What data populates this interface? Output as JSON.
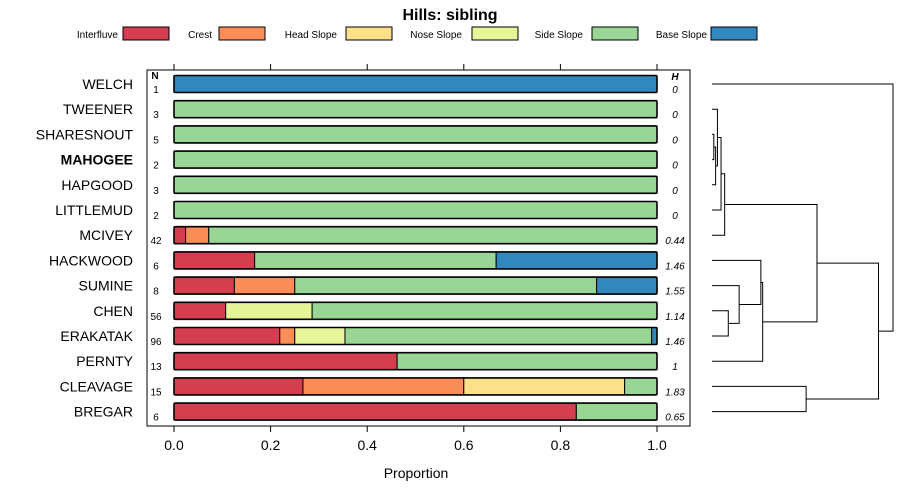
{
  "chart_data": {
    "type": "bar",
    "title": "Hills: sibling",
    "xlabel": "Proportion",
    "ylabel": "",
    "xlim": [
      0,
      1
    ],
    "x_ticks": [
      "0.0",
      "0.2",
      "0.4",
      "0.6",
      "0.8",
      "1.0"
    ],
    "n_header": "N",
    "h_header": "H",
    "categories": [
      "WELCH",
      "TWEENER",
      "SHARESNOUT",
      "MAHOGEE",
      "HAPGOOD",
      "LITTLEMUD",
      "MCIVEY",
      "HACKWOOD",
      "SUMINE",
      "CHEN",
      "ERAKATAK",
      "PERNTY",
      "CLEAVAGE",
      "BREGAR"
    ],
    "highlight": "MAHOGEE",
    "n": [
      "1",
      "3",
      "5",
      "2",
      "3",
      "2",
      "42",
      "6",
      "8",
      "56",
      "96",
      "13",
      "15",
      "6"
    ],
    "h": [
      "0",
      "0",
      "0",
      "0",
      "0",
      "0",
      "0.44",
      "1.46",
      "1.55",
      "1.14",
      "1.46",
      "1",
      "1.83",
      "0.65"
    ],
    "series": [
      {
        "name": "Interfluve",
        "color": "#D53E4F",
        "values": [
          0,
          0,
          0,
          0,
          0,
          0,
          0.024,
          0.167,
          0.125,
          0.107,
          0.219,
          0.462,
          0.267,
          0.833
        ]
      },
      {
        "name": "Crest",
        "color": "#FC8D59",
        "values": [
          0,
          0,
          0,
          0,
          0,
          0,
          0.048,
          0,
          0.125,
          0,
          0.031,
          0,
          0.333,
          0
        ]
      },
      {
        "name": "Head Slope",
        "color": "#FEE08B",
        "values": [
          0,
          0,
          0,
          0,
          0,
          0,
          0,
          0,
          0,
          0,
          0,
          0,
          0.333,
          0
        ]
      },
      {
        "name": "Nose Slope",
        "color": "#E6F598",
        "values": [
          0,
          0,
          0,
          0,
          0,
          0,
          0,
          0,
          0,
          0.179,
          0.104,
          0,
          0,
          0
        ]
      },
      {
        "name": "Side Slope",
        "color": "#99D594",
        "values": [
          0,
          1,
          1,
          1,
          1,
          1,
          0.928,
          0.5,
          0.625,
          0.714,
          0.635,
          0.538,
          0.067,
          0.167
        ]
      },
      {
        "name": "Base Slope",
        "color": "#3288BD",
        "values": [
          1,
          0,
          0,
          0,
          0,
          0,
          0,
          0.333,
          0.125,
          0,
          0.011,
          0,
          0,
          0
        ]
      }
    ],
    "dendrogram": {
      "merges": [
        {
          "a": "SHARESNOUT",
          "b": "MAHOGEE",
          "height": 0.01
        },
        {
          "a": "HAPGOOD",
          "b": "m1",
          "height": 0.02
        },
        {
          "a": "TWEENER",
          "b": "m2",
          "height": 0.03
        },
        {
          "a": "m3",
          "b": "LITTLEMUD",
          "height": 0.05
        },
        {
          "a": "m4",
          "b": "MCIVEY",
          "height": 0.07
        },
        {
          "a": "CHEN",
          "b": "ERAKATAK",
          "height": 0.09
        },
        {
          "a": "SUMINE",
          "b": "m6",
          "height": 0.15
        },
        {
          "a": "HACKWOOD",
          "b": "m7",
          "height": 0.27
        },
        {
          "a": "m8",
          "b": "PERNTY",
          "height": 0.28
        },
        {
          "a": "CLEAVAGE",
          "b": "BREGAR",
          "height": 0.52
        },
        {
          "a": "m5",
          "b": "m9",
          "height": 0.58
        },
        {
          "a": "m11",
          "b": "m10",
          "height": 0.92
        },
        {
          "a": "WELCH",
          "b": "m12",
          "height": 1.0
        }
      ]
    }
  }
}
